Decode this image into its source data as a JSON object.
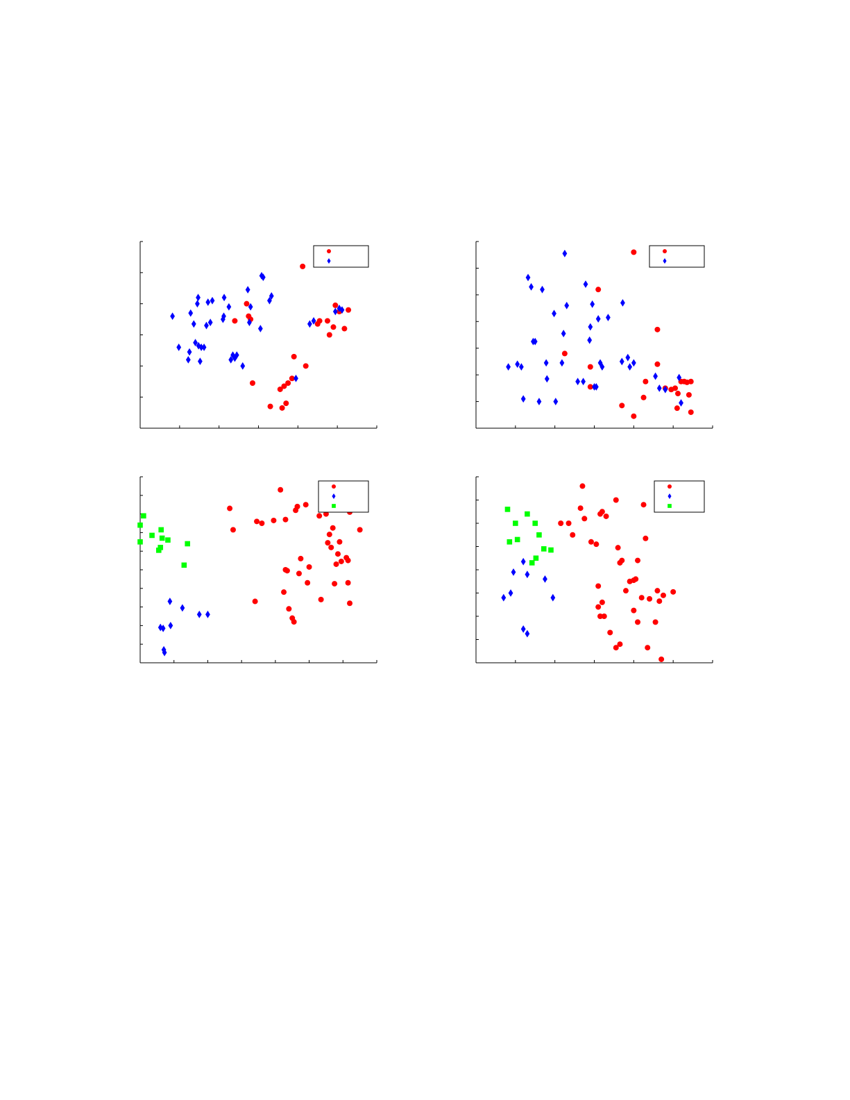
{
  "colors": {
    "red": "#ff0000",
    "blue": "#0000ff",
    "green": "#00ff00",
    "axis": "#000000"
  },
  "chart_data": [
    {
      "type": "scatter",
      "xlim": [
        0,
        6
      ],
      "ylim": [
        0,
        6
      ],
      "legend": "top-right",
      "grid": false,
      "series": [
        {
          "marker": "circle",
          "color": "red",
          "points": [
            [
              2.7,
              4.0
            ],
            [
              2.75,
              3.6
            ],
            [
              2.8,
              3.5
            ],
            [
              2.4,
              3.45
            ],
            [
              2.85,
              1.45
            ],
            [
              3.3,
              0.7
            ],
            [
              3.6,
              0.65
            ],
            [
              3.7,
              0.8
            ],
            [
              3.55,
              1.25
            ],
            [
              3.65,
              1.35
            ],
            [
              3.75,
              1.45
            ],
            [
              3.85,
              1.6
            ],
            [
              3.9,
              2.3
            ],
            [
              4.2,
              2.0
            ],
            [
              4.12,
              5.2
            ],
            [
              4.5,
              3.35
            ],
            [
              4.55,
              3.45
            ],
            [
              4.75,
              3.45
            ],
            [
              4.8,
              3.0
            ],
            [
              4.9,
              3.25
            ],
            [
              4.95,
              3.95
            ],
            [
              5.18,
              3.2
            ],
            [
              5.05,
              3.75
            ],
            [
              5.28,
              3.8
            ]
          ]
        },
        {
          "marker": "diamond",
          "color": "blue",
          "points": [
            [
              0.82,
              3.6
            ],
            [
              0.98,
              2.6
            ],
            [
              1.22,
              2.2
            ],
            [
              1.25,
              2.45
            ],
            [
              1.28,
              3.7
            ],
            [
              1.36,
              3.35
            ],
            [
              1.4,
              2.75
            ],
            [
              1.45,
              4.0
            ],
            [
              1.47,
              4.2
            ],
            [
              1.48,
              2.65
            ],
            [
              1.52,
              2.15
            ],
            [
              1.55,
              2.6
            ],
            [
              1.62,
              2.6
            ],
            [
              1.68,
              3.3
            ],
            [
              1.72,
              4.05
            ],
            [
              1.78,
              3.4
            ],
            [
              1.83,
              4.1
            ],
            [
              2.1,
              3.5
            ],
            [
              2.12,
              3.6
            ],
            [
              2.13,
              4.2
            ],
            [
              2.25,
              3.9
            ],
            [
              2.3,
              2.2
            ],
            [
              2.35,
              2.35
            ],
            [
              2.4,
              2.25
            ],
            [
              2.45,
              2.35
            ],
            [
              2.6,
              2.0
            ],
            [
              2.73,
              4.45
            ],
            [
              2.8,
              3.9
            ],
            [
              2.77,
              3.4
            ],
            [
              3.05,
              3.2
            ],
            [
              3.08,
              4.9
            ],
            [
              3.12,
              4.85
            ],
            [
              3.28,
              4.1
            ],
            [
              3.33,
              4.25
            ],
            [
              3.95,
              1.6
            ],
            [
              4.3,
              3.35
            ],
            [
              4.4,
              3.45
            ],
            [
              4.95,
              3.75
            ],
            [
              5.05,
              3.85
            ],
            [
              5.12,
              3.8
            ]
          ]
        }
      ]
    },
    {
      "type": "scatter",
      "xlim": [
        0,
        6
      ],
      "ylim": [
        0,
        7
      ],
      "legend": "top-right",
      "grid": false,
      "series": [
        {
          "marker": "circle",
          "color": "red",
          "points": [
            [
              4.0,
              6.6
            ],
            [
              3.1,
              5.2
            ],
            [
              4.6,
              3.7
            ],
            [
              2.25,
              2.8
            ],
            [
              2.9,
              2.3
            ],
            [
              2.9,
              1.55
            ],
            [
              3.7,
              0.85
            ],
            [
              4.0,
              0.45
            ],
            [
              4.25,
              1.15
            ],
            [
              4.3,
              1.75
            ],
            [
              4.6,
              2.4
            ],
            [
              4.8,
              1.5
            ],
            [
              4.95,
              1.45
            ],
            [
              5.05,
              1.5
            ],
            [
              5.12,
              1.3
            ],
            [
              5.2,
              1.75
            ],
            [
              5.28,
              1.75
            ],
            [
              5.35,
              1.72
            ],
            [
              5.45,
              1.75
            ],
            [
              5.4,
              1.25
            ],
            [
              5.1,
              0.75
            ],
            [
              5.45,
              0.6
            ]
          ]
        },
        {
          "marker": "diamond",
          "color": "blue",
          "points": [
            [
              0.82,
              2.3
            ],
            [
              1.05,
              2.4
            ],
            [
              1.15,
              2.3
            ],
            [
              1.2,
              1.1
            ],
            [
              1.32,
              5.65
            ],
            [
              1.4,
              5.3
            ],
            [
              1.45,
              3.25
            ],
            [
              1.5,
              3.25
            ],
            [
              1.6,
              1.0
            ],
            [
              1.68,
              5.2
            ],
            [
              1.78,
              2.45
            ],
            [
              1.8,
              1.85
            ],
            [
              1.98,
              4.3
            ],
            [
              2.02,
              1.0
            ],
            [
              2.18,
              2.45
            ],
            [
              2.22,
              3.55
            ],
            [
              2.25,
              6.55
            ],
            [
              2.3,
              4.6
            ],
            [
              2.58,
              1.75
            ],
            [
              2.72,
              1.75
            ],
            [
              2.78,
              5.4
            ],
            [
              2.88,
              3.3
            ],
            [
              2.9,
              3.8
            ],
            [
              2.95,
              4.65
            ],
            [
              3.0,
              1.55
            ],
            [
              3.05,
              1.55
            ],
            [
              3.1,
              4.1
            ],
            [
              3.15,
              2.45
            ],
            [
              3.2,
              2.3
            ],
            [
              3.35,
              4.15
            ],
            [
              3.7,
              2.5
            ],
            [
              3.72,
              4.7
            ],
            [
              3.85,
              2.65
            ],
            [
              3.9,
              2.3
            ],
            [
              4.0,
              2.45
            ],
            [
              4.55,
              1.95
            ],
            [
              4.65,
              1.5
            ],
            [
              4.8,
              1.45
            ],
            [
              5.15,
              1.9
            ],
            [
              5.2,
              0.95
            ]
          ]
        }
      ]
    },
    {
      "type": "scatter",
      "xlim": [
        0,
        7
      ],
      "ylim": [
        0,
        10
      ],
      "legend": "top-right",
      "grid": false,
      "series": [
        {
          "marker": "circle",
          "color": "red",
          "points": [
            [
              2.65,
              8.3
            ],
            [
              2.75,
              7.15
            ],
            [
              3.4,
              3.3
            ],
            [
              3.45,
              7.6
            ],
            [
              3.6,
              7.5
            ],
            [
              3.95,
              7.65
            ],
            [
              4.15,
              9.3
            ],
            [
              4.25,
              3.8
            ],
            [
              4.3,
              5.0
            ],
            [
              4.35,
              4.95
            ],
            [
              4.4,
              2.9
            ],
            [
              4.5,
              2.4
            ],
            [
              4.55,
              2.2
            ],
            [
              4.6,
              8.2
            ],
            [
              4.65,
              8.4
            ],
            [
              4.3,
              7.7
            ],
            [
              4.7,
              4.8
            ],
            [
              4.75,
              5.6
            ],
            [
              4.9,
              8.5
            ],
            [
              4.95,
              4.3
            ],
            [
              5.0,
              5.15
            ],
            [
              5.3,
              7.9
            ],
            [
              5.35,
              3.4
            ],
            [
              5.5,
              8.0
            ],
            [
              5.55,
              6.45
            ],
            [
              5.6,
              6.9
            ],
            [
              5.65,
              6.2
            ],
            [
              5.7,
              7.25
            ],
            [
              5.75,
              4.25
            ],
            [
              5.8,
              5.3
            ],
            [
              5.85,
              5.85
            ],
            [
              5.9,
              6.5
            ],
            [
              5.95,
              5.45
            ],
            [
              6.1,
              5.65
            ],
            [
              6.15,
              5.5
            ],
            [
              6.2,
              8.1
            ],
            [
              6.15,
              4.3
            ],
            [
              6.2,
              3.2
            ],
            [
              6.5,
              7.15
            ]
          ]
        },
        {
          "marker": "diamond",
          "color": "blue",
          "points": [
            [
              0.6,
              1.9
            ],
            [
              0.68,
              1.85
            ],
            [
              0.7,
              0.7
            ],
            [
              0.72,
              0.55
            ],
            [
              0.88,
              3.3
            ],
            [
              0.9,
              2.0
            ],
            [
              1.25,
              2.95
            ],
            [
              1.75,
              2.6
            ],
            [
              2.0,
              2.6
            ]
          ]
        },
        {
          "marker": "square",
          "color": "green",
          "points": [
            [
              0.0,
              7.4
            ],
            [
              0.0,
              6.5
            ],
            [
              0.1,
              7.9
            ],
            [
              0.35,
              6.85
            ],
            [
              0.55,
              6.05
            ],
            [
              0.6,
              6.2
            ],
            [
              0.62,
              7.15
            ],
            [
              0.65,
              6.7
            ],
            [
              0.82,
              6.6
            ],
            [
              1.3,
              5.25
            ],
            [
              1.4,
              6.4
            ]
          ]
        }
      ]
    },
    {
      "type": "scatter",
      "xlim": [
        0,
        6
      ],
      "ylim": [
        0,
        8
      ],
      "legend": "top-right",
      "grid": false,
      "series": [
        {
          "marker": "circle",
          "color": "red",
          "points": [
            [
              2.15,
              6.0
            ],
            [
              2.35,
              6.0
            ],
            [
              2.45,
              5.5
            ],
            [
              2.65,
              6.65
            ],
            [
              2.7,
              7.6
            ],
            [
              2.75,
              6.2
            ],
            [
              2.92,
              5.2
            ],
            [
              3.05,
              5.1
            ],
            [
              3.1,
              3.3
            ],
            [
              3.15,
              6.4
            ],
            [
              3.1,
              2.4
            ],
            [
              3.15,
              2.0
            ],
            [
              3.2,
              6.5
            ],
            [
              3.2,
              2.6
            ],
            [
              3.25,
              2.0
            ],
            [
              3.3,
              6.3
            ],
            [
              3.4,
              1.3
            ],
            [
              3.55,
              0.65
            ],
            [
              3.65,
              0.8
            ],
            [
              3.55,
              7.0
            ],
            [
              3.6,
              4.95
            ],
            [
              3.65,
              4.3
            ],
            [
              3.7,
              4.4
            ],
            [
              3.8,
              3.1
            ],
            [
              3.9,
              3.5
            ],
            [
              4.0,
              3.55
            ],
            [
              4.0,
              2.25
            ],
            [
              4.05,
              3.6
            ],
            [
              4.1,
              1.75
            ],
            [
              4.1,
              4.4
            ],
            [
              4.2,
              2.8
            ],
            [
              4.25,
              6.8
            ],
            [
              4.3,
              5.35
            ],
            [
              4.35,
              0.65
            ],
            [
              4.4,
              2.75
            ],
            [
              4.55,
              1.75
            ],
            [
              4.6,
              3.1
            ],
            [
              4.65,
              2.65
            ],
            [
              4.7,
              0.15
            ],
            [
              4.75,
              2.9
            ],
            [
              5.0,
              3.05
            ]
          ]
        },
        {
          "marker": "diamond",
          "color": "blue",
          "points": [
            [
              0.7,
              2.8
            ],
            [
              0.88,
              3.0
            ],
            [
              0.95,
              3.9
            ],
            [
              1.2,
              1.45
            ],
            [
              1.2,
              4.35
            ],
            [
              1.3,
              1.25
            ],
            [
              1.3,
              3.8
            ],
            [
              1.75,
              3.6
            ],
            [
              1.95,
              2.8
            ]
          ]
        },
        {
          "marker": "square",
          "color": "green",
          "points": [
            [
              0.8,
              6.6
            ],
            [
              0.85,
              5.2
            ],
            [
              1.0,
              6.0
            ],
            [
              1.05,
              5.3
            ],
            [
              1.3,
              6.4
            ],
            [
              1.42,
              4.3
            ],
            [
              1.5,
              6.0
            ],
            [
              1.52,
              4.5
            ],
            [
              1.6,
              5.5
            ],
            [
              1.72,
              4.9
            ],
            [
              1.9,
              4.85
            ]
          ]
        }
      ]
    }
  ]
}
